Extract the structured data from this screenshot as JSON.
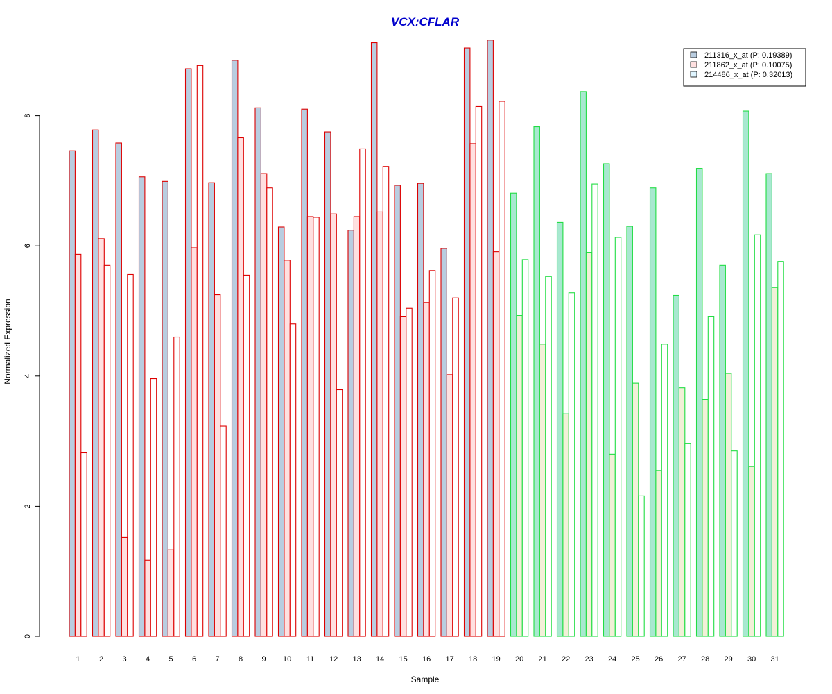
{
  "chart_data": {
    "type": "bar",
    "title": "VCX:CFLAR",
    "xlabel": "Sample",
    "ylabel": "Normalized Expression",
    "ylim": [
      0,
      9.2
    ],
    "yticks": [
      0,
      2,
      4,
      6,
      8
    ],
    "categories": [
      "1",
      "2",
      "3",
      "4",
      "5",
      "6",
      "7",
      "8",
      "9",
      "10",
      "11",
      "12",
      "13",
      "14",
      "15",
      "16",
      "17",
      "18",
      "19",
      "20",
      "21",
      "22",
      "23",
      "24",
      "25",
      "26",
      "27",
      "28",
      "29",
      "30",
      "31"
    ],
    "legend_position": "top-right",
    "group1_count": 19,
    "series": [
      {
        "name": "211316_x_at (P: 0.19389)",
        "values": [
          7.46,
          7.78,
          7.58,
          7.06,
          6.99,
          8.72,
          6.97,
          8.85,
          8.12,
          6.29,
          8.1,
          7.75,
          6.24,
          9.12,
          6.93,
          6.96,
          5.96,
          9.04,
          9.16,
          6.81,
          7.83,
          6.36,
          8.37,
          7.26,
          6.3,
          6.89,
          5.24,
          7.19,
          5.7,
          8.07,
          7.11
        ]
      },
      {
        "name": "211862_x_at (P: 0.10075)",
        "values": [
          5.87,
          6.11,
          1.52,
          1.17,
          1.33,
          5.97,
          5.25,
          7.66,
          7.11,
          5.78,
          6.45,
          6.49,
          6.45,
          6.52,
          4.91,
          5.13,
          4.02,
          7.57,
          5.91,
          4.93,
          4.49,
          3.42,
          5.9,
          2.8,
          3.89,
          2.55,
          3.82,
          3.64,
          4.04,
          2.61,
          5.36
        ]
      },
      {
        "name": "214486_x_at (P: 0.32013)",
        "values": [
          2.82,
          5.7,
          5.56,
          3.96,
          4.6,
          8.77,
          3.23,
          5.55,
          6.89,
          4.8,
          6.44,
          3.79,
          7.49,
          7.22,
          5.04,
          5.62,
          5.2,
          8.14,
          8.22,
          5.79,
          5.53,
          5.28,
          6.95,
          6.13,
          2.16,
          4.49,
          2.96,
          4.91,
          2.85,
          6.17,
          5.76
        ]
      }
    ],
    "colors": {
      "title": "#0000cc",
      "group1_border": "#dd0000",
      "group2_border": "#22dd44",
      "series_fill_group1": [
        "#b9cde0",
        "#ffe0e0",
        "#ffffff"
      ],
      "series_fill_group2": [
        "#a8e8d0",
        "#f2f0d8",
        "#ffffff"
      ],
      "legend_fill": [
        "#b9cde0",
        "#ffe0e0",
        "#dff5ff"
      ]
    }
  }
}
